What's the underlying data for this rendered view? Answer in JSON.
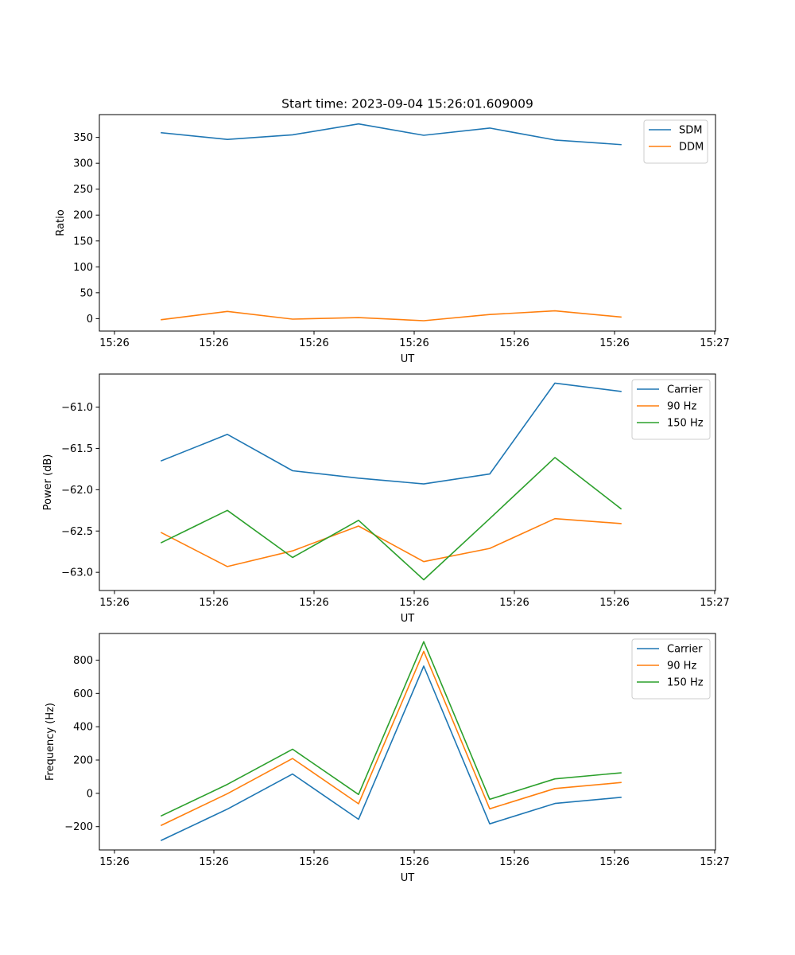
{
  "figure_title": "Start time: 2023-09-04 15:26:01.609009",
  "colors": {
    "blue": "#1f77b4",
    "orange": "#ff7f0e",
    "green": "#2ca02c"
  },
  "chart_data": [
    {
      "type": "line",
      "xlabel": "UT",
      "ylabel": "Ratio",
      "x_tick_labels": [
        "15:26",
        "15:26",
        "15:26",
        "15:26",
        "15:26",
        "15:26",
        "15:27"
      ],
      "y_ticks": [
        0,
        50,
        100,
        150,
        200,
        250,
        300,
        350
      ],
      "y_tick_labels": [
        "0",
        "50",
        "100",
        "150",
        "200",
        "250",
        "300",
        "350"
      ],
      "ylim": [
        -24,
        394
      ],
      "legend_position": "upper right",
      "series": [
        {
          "name": "SDM",
          "color": "#1f77b4",
          "values": [
            359,
            346,
            355,
            376,
            354,
            368,
            345,
            336
          ]
        },
        {
          "name": "DDM",
          "color": "#ff7f0e",
          "values": [
            -2,
            14,
            -1,
            2,
            -4,
            8,
            15,
            3
          ]
        }
      ]
    },
    {
      "type": "line",
      "xlabel": "UT",
      "ylabel": "Power (dB)",
      "x_tick_labels": [
        "15:26",
        "15:26",
        "15:26",
        "15:26",
        "15:26",
        "15:26",
        "15:27"
      ],
      "y_ticks": [
        -63.0,
        -62.5,
        -62.0,
        -61.5,
        -61.0
      ],
      "y_tick_labels": [
        "−63.0",
        "−62.5",
        "−62.0",
        "−61.5",
        "−61.0"
      ],
      "ylim": [
        -63.22,
        -60.6
      ],
      "legend_position": "upper right",
      "series": [
        {
          "name": "Carrier",
          "color": "#1f77b4",
          "values": [
            -61.65,
            -61.33,
            -61.77,
            -61.86,
            -61.93,
            -61.81,
            -60.71,
            -60.81
          ]
        },
        {
          "name": "90 Hz",
          "color": "#ff7f0e",
          "values": [
            -62.52,
            -62.93,
            -62.74,
            -62.44,
            -62.87,
            -62.71,
            -62.35,
            -62.41
          ]
        },
        {
          "name": "150 Hz",
          "color": "#2ca02c",
          "values": [
            -62.64,
            -62.25,
            -62.82,
            -62.37,
            -63.09,
            -62.35,
            -61.61,
            -62.23
          ]
        }
      ]
    },
    {
      "type": "line",
      "xlabel": "UT",
      "ylabel": "Frequency (Hz)",
      "x_tick_labels": [
        "15:26",
        "15:26",
        "15:26",
        "15:26",
        "15:26",
        "15:26",
        "15:27"
      ],
      "y_ticks": [
        -200,
        0,
        200,
        400,
        600,
        800
      ],
      "y_tick_labels": [
        "−200",
        "0",
        "200",
        "400",
        "600",
        "800"
      ],
      "ylim": [
        -340,
        960
      ],
      "legend_position": "upper right",
      "series": [
        {
          "name": "Carrier",
          "color": "#1f77b4",
          "values": [
            -282,
            -95,
            116,
            -156,
            764,
            -183,
            -61,
            -24
          ]
        },
        {
          "name": "90 Hz",
          "color": "#ff7f0e",
          "values": [
            -192,
            -2,
            209,
            -63,
            853,
            -93,
            29,
            65
          ]
        },
        {
          "name": "150 Hz",
          "color": "#2ca02c",
          "values": [
            -135,
            54,
            265,
            -7,
            911,
            -36,
            87,
            123
          ]
        }
      ]
    }
  ]
}
